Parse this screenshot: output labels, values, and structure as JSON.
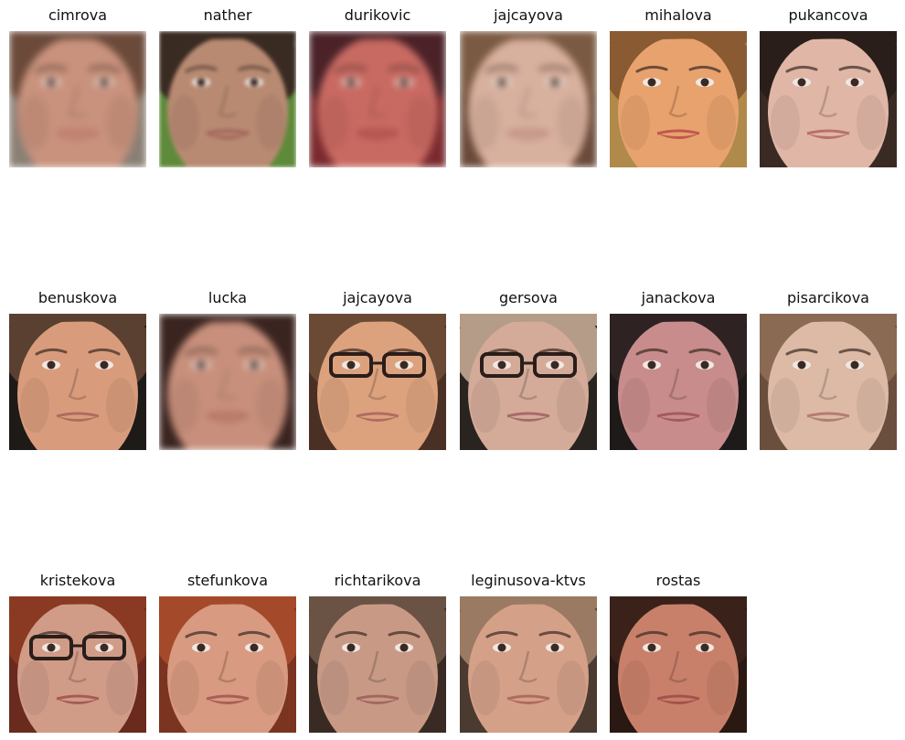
{
  "gallery": {
    "faces": [
      {
        "label": "cimrova",
        "bg": "#8a7f74",
        "skin": "#c9927d",
        "hair": "#6b4a3a",
        "lips": "#b56a64",
        "glasses": false,
        "blur": "heavy"
      },
      {
        "label": "nather",
        "bg": "#5e8a3a",
        "skin": "#b88a72",
        "hair": "#3a2b22",
        "lips": "#9a5a52",
        "glasses": false,
        "blur": "mid"
      },
      {
        "label": "durikovic",
        "bg": "#7a2a2e",
        "skin": "#c96a62",
        "hair": "#4a2228",
        "lips": "#9e3e40",
        "glasses": false,
        "blur": "heavy"
      },
      {
        "label": "jajcayova",
        "bg": "#6a4a3a",
        "skin": "#d8b09e",
        "hair": "#7a5a42",
        "lips": "#b07a74",
        "glasses": false,
        "blur": "heavy"
      },
      {
        "label": "mihalova",
        "bg": "#b08a4a",
        "skin": "#e8a26e",
        "hair": "#8a5a32",
        "lips": "#c0584e",
        "glasses": false,
        "blur": "none"
      },
      {
        "label": "pukancova",
        "bg": "#3a2a24",
        "skin": "#e0b6a6",
        "hair": "#2a1e1a",
        "lips": "#b8706c",
        "glasses": false,
        "blur": "none"
      },
      {
        "label": "benuskova",
        "bg": "#1e1a18",
        "skin": "#d89c7c",
        "hair": "#5a4030",
        "lips": "#b06a5e",
        "glasses": false,
        "blur": "none"
      },
      {
        "label": "lucka",
        "bg": "#3a2420",
        "skin": "#c8907c",
        "hair": "#3a2420",
        "lips": "#a85e58",
        "glasses": false,
        "blur": "heavy"
      },
      {
        "label": "jajcayova",
        "bg": "#4a3024",
        "skin": "#dca27e",
        "hair": "#6a4a34",
        "lips": "#b26c60",
        "glasses": true,
        "blur": "none"
      },
      {
        "label": "gersova",
        "bg": "#2a2420",
        "skin": "#d4aa98",
        "hair": "#b49c88",
        "lips": "#a86a68",
        "glasses": true,
        "blur": "none"
      },
      {
        "label": "janackova",
        "bg": "#1e1a1a",
        "skin": "#c88c8c",
        "hair": "#2e2222",
        "lips": "#a45a5e",
        "glasses": false,
        "blur": "none"
      },
      {
        "label": "pisarcikova",
        "bg": "#6a4e3e",
        "skin": "#dcbaa6",
        "hair": "#8a6a52",
        "lips": "#b47c74",
        "glasses": false,
        "blur": "none"
      },
      {
        "label": "kristekova",
        "bg": "#6a2a1e",
        "skin": "#d09c88",
        "hair": "#8a3a22",
        "lips": "#a85a54",
        "glasses": true,
        "blur": "none"
      },
      {
        "label": "stefunkova",
        "bg": "#7a3420",
        "skin": "#d89a80",
        "hair": "#a44a2a",
        "lips": "#aa5e56",
        "glasses": false,
        "blur": "none"
      },
      {
        "label": "richtarikova",
        "bg": "#3a2a24",
        "skin": "#c89a86",
        "hair": "#6a5244",
        "lips": "#a46660",
        "glasses": false,
        "blur": "none"
      },
      {
        "label": "leginusova-ktvs",
        "bg": "#4a3a30",
        "skin": "#d4a088",
        "hair": "#9a7a62",
        "lips": "#b06a60",
        "glasses": false,
        "blur": "none"
      },
      {
        "label": "rostas",
        "bg": "#2a1812",
        "skin": "#c8806a",
        "hair": "#3a221a",
        "lips": "#a4524c",
        "glasses": false,
        "blur": "none"
      }
    ]
  }
}
